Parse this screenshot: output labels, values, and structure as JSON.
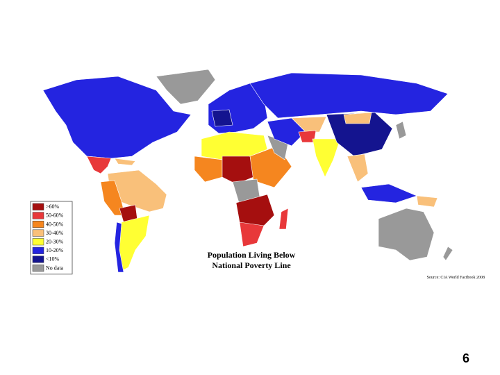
{
  "title_lines": [
    "Population Living Below",
    "National Poverty Line"
  ],
  "legend": [
    {
      "label": ">60%",
      "color": "#a50f0f"
    },
    {
      "label": "50-60%",
      "color": "#e8383a"
    },
    {
      "label": "40-50%",
      "color": "#f5861f"
    },
    {
      "label": "30-40%",
      "color": "#f9c07a"
    },
    {
      "label": "20-30%",
      "color": "#ffff33"
    },
    {
      "label": "10-20%",
      "color": "#2424e0"
    },
    {
      "label": "<10%",
      "color": "#14148f"
    },
    {
      "label": "No data",
      "color": "#999999"
    }
  ],
  "source": "Source: CIA World Factbook 2008",
  "page_number": "6"
}
